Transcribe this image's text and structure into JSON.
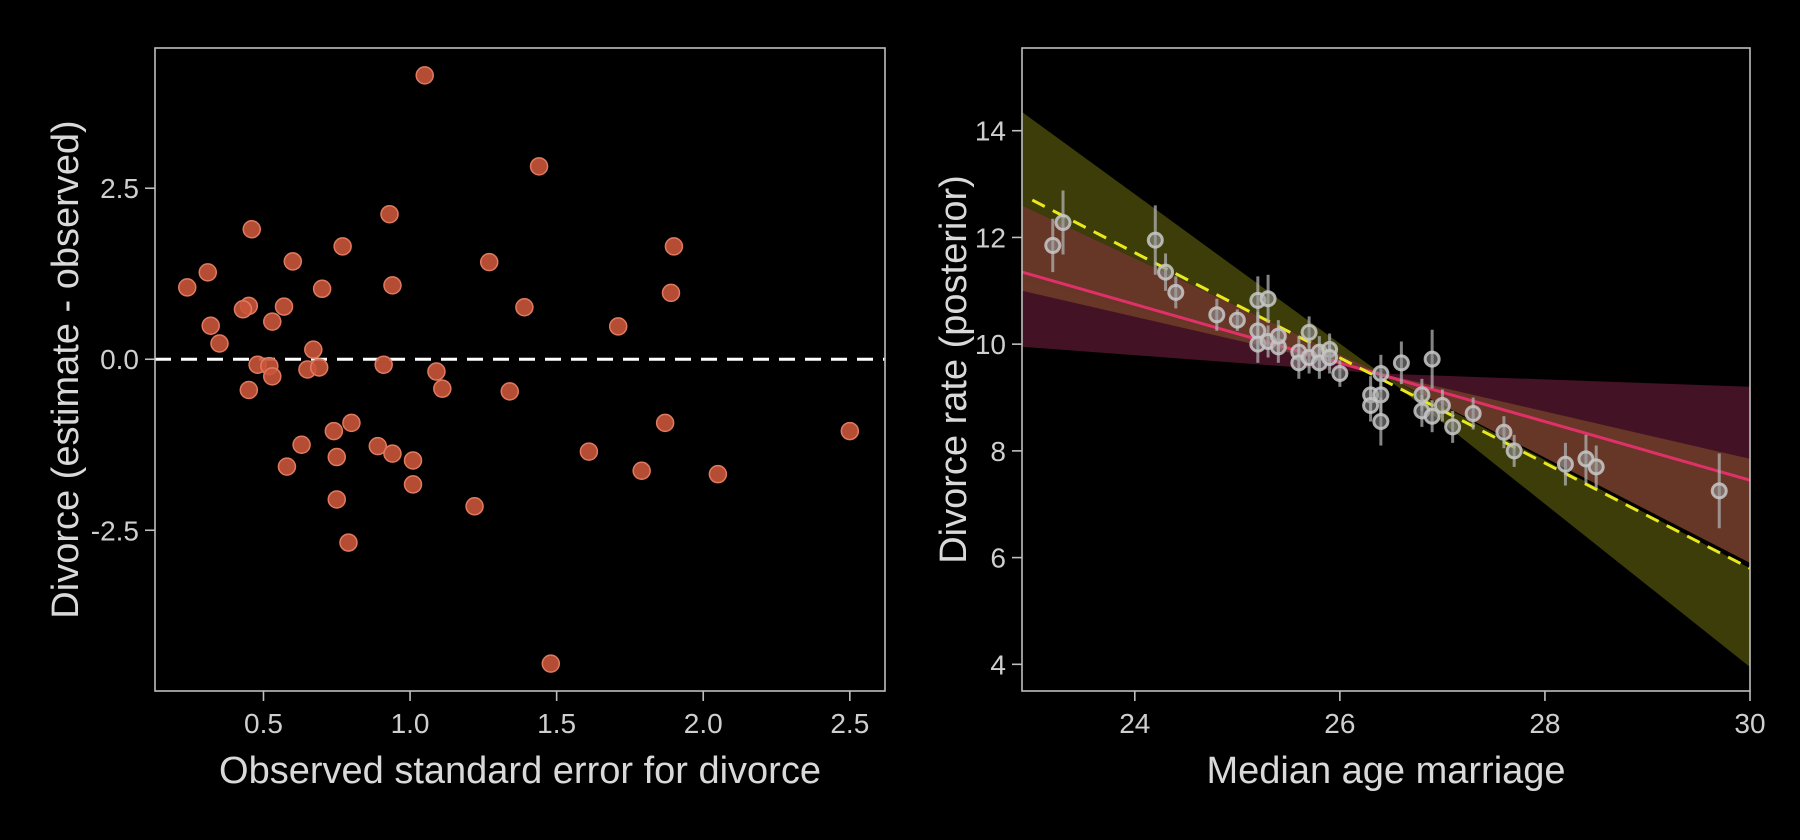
{
  "chart_data": [
    {
      "type": "scatter",
      "xlabel": "Observed standard error for divorce",
      "ylabel": "Divorce (estimate - observed)",
      "xlim": [
        0.13,
        2.62
      ],
      "ylim": [
        -4.85,
        4.55
      ],
      "xticks": [
        0.5,
        1.0,
        1.5,
        2.0,
        2.5
      ],
      "xtick_labels": [
        "0.5",
        "1.0",
        "1.5",
        "2.0",
        "2.5"
      ],
      "yticks": [
        -2.5,
        0.0,
        2.5
      ],
      "ytick_labels": [
        "-2.5",
        "0.0",
        "2.5"
      ],
      "reference_line": {
        "y": 0,
        "style": "dashed",
        "color": "#ffffff"
      },
      "point_color": "#c9553a",
      "points": [
        {
          "x": 1.05,
          "y": 4.15
        },
        {
          "x": 1.44,
          "y": 2.82
        },
        {
          "x": 0.93,
          "y": 2.12
        },
        {
          "x": 0.46,
          "y": 1.9
        },
        {
          "x": 0.77,
          "y": 1.65
        },
        {
          "x": 1.9,
          "y": 1.65
        },
        {
          "x": 0.6,
          "y": 1.43
        },
        {
          "x": 1.27,
          "y": 1.42
        },
        {
          "x": 0.31,
          "y": 1.27
        },
        {
          "x": 0.24,
          "y": 1.05
        },
        {
          "x": 0.94,
          "y": 1.08
        },
        {
          "x": 0.7,
          "y": 1.03
        },
        {
          "x": 1.89,
          "y": 0.97
        },
        {
          "x": 0.45,
          "y": 0.78
        },
        {
          "x": 0.43,
          "y": 0.73
        },
        {
          "x": 0.57,
          "y": 0.77
        },
        {
          "x": 1.39,
          "y": 0.76
        },
        {
          "x": 0.32,
          "y": 0.49
        },
        {
          "x": 0.53,
          "y": 0.55
        },
        {
          "x": 1.71,
          "y": 0.48
        },
        {
          "x": 0.35,
          "y": 0.23
        },
        {
          "x": 0.67,
          "y": 0.14
        },
        {
          "x": 0.48,
          "y": -0.08
        },
        {
          "x": 0.52,
          "y": -0.1
        },
        {
          "x": 0.65,
          "y": -0.15
        },
        {
          "x": 0.69,
          "y": -0.12
        },
        {
          "x": 0.91,
          "y": -0.08
        },
        {
          "x": 0.53,
          "y": -0.25
        },
        {
          "x": 1.09,
          "y": -0.18
        },
        {
          "x": 0.45,
          "y": -0.45
        },
        {
          "x": 1.11,
          "y": -0.43
        },
        {
          "x": 1.34,
          "y": -0.47
        },
        {
          "x": 0.8,
          "y": -0.93
        },
        {
          "x": 1.87,
          "y": -0.93
        },
        {
          "x": 0.74,
          "y": -1.05
        },
        {
          "x": 2.5,
          "y": -1.05
        },
        {
          "x": 0.63,
          "y": -1.25
        },
        {
          "x": 0.89,
          "y": -1.27
        },
        {
          "x": 0.94,
          "y": -1.38
        },
        {
          "x": 1.61,
          "y": -1.35
        },
        {
          "x": 0.75,
          "y": -1.43
        },
        {
          "x": 1.01,
          "y": -1.48
        },
        {
          "x": 0.58,
          "y": -1.57
        },
        {
          "x": 1.79,
          "y": -1.63
        },
        {
          "x": 2.05,
          "y": -1.68
        },
        {
          "x": 1.01,
          "y": -1.83
        },
        {
          "x": 0.75,
          "y": -2.05
        },
        {
          "x": 1.22,
          "y": -2.15
        },
        {
          "x": 0.79,
          "y": -2.68
        },
        {
          "x": 1.48,
          "y": -4.45
        }
      ]
    },
    {
      "type": "scatter",
      "xlabel": "Median age marriage",
      "ylabel": "Divorce rate (posterior)",
      "xlim": [
        22.9,
        30.0
      ],
      "ylim": [
        3.5,
        15.55
      ],
      "xticks": [
        24,
        26,
        28,
        30
      ],
      "xtick_labels": [
        "24",
        "26",
        "28",
        "30"
      ],
      "yticks": [
        4,
        6,
        8,
        10,
        12,
        14
      ],
      "ytick_labels": [
        "4",
        "6",
        "8",
        "10",
        "12",
        "14"
      ],
      "bands": [
        {
          "color": "#4a4a0c",
          "opacity": 0.82,
          "x": [
            22.9,
            26.4,
            30.0
          ],
          "lower": [
            12.6,
            9.45,
            3.95
          ],
          "upper": [
            14.35,
            9.45,
            5.8
          ]
        },
        {
          "color": "#4a1428",
          "opacity": 0.9,
          "x": [
            22.9,
            26.4,
            30.0
          ],
          "lower": [
            9.95,
            9.45,
            7.45
          ],
          "upper": [
            11.2,
            9.45,
            9.2
          ]
        },
        {
          "color": "#6b3a28",
          "opacity": 0.95,
          "x": [
            22.9,
            26.4,
            30.0
          ],
          "lower": [
            11.0,
            9.45,
            5.9
          ],
          "upper": [
            12.6,
            9.45,
            7.85
          ]
        }
      ],
      "lines": [
        {
          "color": "#e0306a",
          "style": "solid",
          "x": [
            22.9,
            30.0
          ],
          "y": [
            11.35,
            7.45
          ]
        },
        {
          "color": "#e8e81e",
          "style": "dashed",
          "x": [
            23.0,
            30.0
          ],
          "y": [
            12.7,
            5.8
          ]
        }
      ],
      "point_color": "#c8c8c8",
      "points": [
        {
          "x": 23.2,
          "y": 11.85,
          "err": 0.5
        },
        {
          "x": 23.3,
          "y": 12.28,
          "err": 0.6
        },
        {
          "x": 24.2,
          "y": 11.95,
          "err": 0.65
        },
        {
          "x": 24.3,
          "y": 11.35,
          "err": 0.35
        },
        {
          "x": 24.4,
          "y": 10.97,
          "err": 0.3
        },
        {
          "x": 24.8,
          "y": 10.55,
          "err": 0.3
        },
        {
          "x": 25.0,
          "y": 10.45,
          "err": 0.2
        },
        {
          "x": 25.2,
          "y": 10.82,
          "err": 0.45
        },
        {
          "x": 25.3,
          "y": 10.85,
          "err": 0.45
        },
        {
          "x": 25.2,
          "y": 10.25,
          "err": 0.35
        },
        {
          "x": 25.2,
          "y": 10.0,
          "err": 0.35
        },
        {
          "x": 25.3,
          "y": 10.05,
          "err": 0.3
        },
        {
          "x": 25.4,
          "y": 9.95,
          "err": 0.3
        },
        {
          "x": 25.4,
          "y": 10.15,
          "err": 0.3
        },
        {
          "x": 25.6,
          "y": 9.85,
          "err": 0.3
        },
        {
          "x": 25.6,
          "y": 9.65,
          "err": 0.3
        },
        {
          "x": 25.7,
          "y": 10.22,
          "err": 0.3
        },
        {
          "x": 25.7,
          "y": 9.75,
          "err": 0.3
        },
        {
          "x": 25.8,
          "y": 9.85,
          "err": 0.3
        },
        {
          "x": 25.8,
          "y": 9.65,
          "err": 0.3
        },
        {
          "x": 25.9,
          "y": 9.9,
          "err": 0.3
        },
        {
          "x": 25.9,
          "y": 9.75,
          "err": 0.3
        },
        {
          "x": 26.0,
          "y": 9.45,
          "err": 0.25
        },
        {
          "x": 26.3,
          "y": 9.05,
          "err": 0.35
        },
        {
          "x": 26.3,
          "y": 8.85,
          "err": 0.3
        },
        {
          "x": 26.4,
          "y": 9.45,
          "err": 0.35
        },
        {
          "x": 26.4,
          "y": 9.05,
          "err": 0.35
        },
        {
          "x": 26.4,
          "y": 8.55,
          "err": 0.45
        },
        {
          "x": 26.6,
          "y": 9.65,
          "err": 0.4
        },
        {
          "x": 26.8,
          "y": 9.05,
          "err": 0.3
        },
        {
          "x": 26.8,
          "y": 8.75,
          "err": 0.3
        },
        {
          "x": 26.9,
          "y": 9.72,
          "err": 0.55
        },
        {
          "x": 26.9,
          "y": 8.65,
          "err": 0.3
        },
        {
          "x": 27.0,
          "y": 8.85,
          "err": 0.3
        },
        {
          "x": 27.1,
          "y": 8.45,
          "err": 0.3
        },
        {
          "x": 27.3,
          "y": 8.7,
          "err": 0.3
        },
        {
          "x": 27.6,
          "y": 8.35,
          "err": 0.3
        },
        {
          "x": 27.7,
          "y": 8.0,
          "err": 0.3
        },
        {
          "x": 28.2,
          "y": 7.75,
          "err": 0.4
        },
        {
          "x": 28.4,
          "y": 7.85,
          "err": 0.45
        },
        {
          "x": 28.5,
          "y": 7.7,
          "err": 0.4
        },
        {
          "x": 29.7,
          "y": 7.25,
          "err": 0.7
        }
      ]
    }
  ]
}
